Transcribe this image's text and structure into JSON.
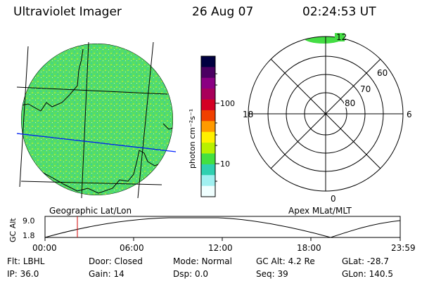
{
  "header": {
    "instrument": "Ultraviolet Imager",
    "date": "26 Aug 07",
    "time": "02:24:53 UT"
  },
  "colorbar": {
    "unit_label": "photon cm⁻²s⁻¹",
    "tick_labels": [
      "100",
      "10"
    ],
    "colors": [
      "#000040",
      "#4b0062",
      "#8a0082",
      "#a8005a",
      "#d40024",
      "#f04000",
      "#ff9a00",
      "#fff000",
      "#b8f000",
      "#44e040",
      "#30d0b0",
      "#a0f0f0",
      "#f0ffff"
    ]
  },
  "left_panel": {
    "caption": "Geographic Lat/Lon",
    "image_color": "#55dd66"
  },
  "polar_grid": {
    "caption": "Apex MLat/MLT",
    "ring_labels": [
      "60",
      "70",
      "80"
    ],
    "mlt_labels": {
      "top": "12",
      "left": "18",
      "right": "6",
      "bottom": "0"
    }
  },
  "altitude_plot": {
    "ylabel": "GC Alt",
    "y_ticks": [
      "9.0",
      "1.8"
    ],
    "x_ticks": [
      "00:00",
      "06:00",
      "12:00",
      "18:00",
      "23:59"
    ],
    "marker_color": "#d00000"
  },
  "status": {
    "row1": [
      {
        "label": "Flt:",
        "value": "LBHL"
      },
      {
        "label": "Door:",
        "value": "Closed"
      },
      {
        "label": "Mode:",
        "value": "Normal"
      },
      {
        "label": "GC Alt:",
        "value": "4.2 Re"
      },
      {
        "label": "GLat:",
        "value": "-28.7"
      }
    ],
    "row2": [
      {
        "label": "IP:",
        "value": "36.0"
      },
      {
        "label": "Gain:",
        "value": "14"
      },
      {
        "label": "Dsp:",
        "value": "0.0"
      },
      {
        "label": "Seq:",
        "value": "39"
      },
      {
        "label": "GLon:",
        "value": "140.5"
      }
    ]
  }
}
